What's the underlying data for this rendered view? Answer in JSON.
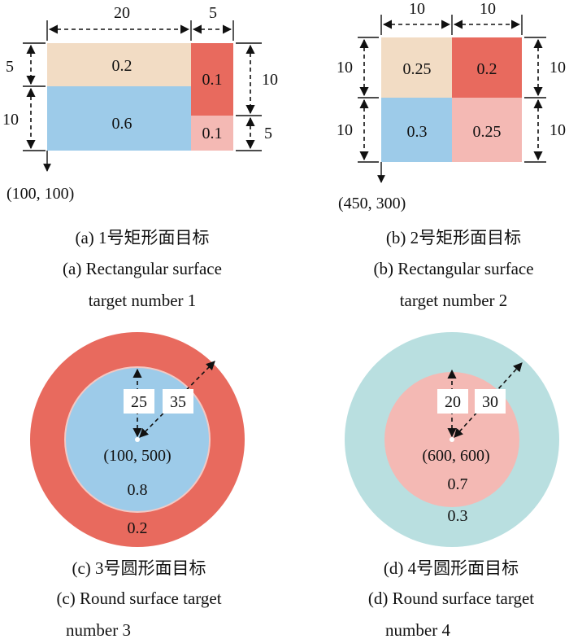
{
  "colors": {
    "tan": "#f2dcc4",
    "red": "#e86a5e",
    "pink": "#f4b9b4",
    "blue": "#9dcbe9",
    "teal": "#b9dfe0"
  },
  "panel_a": {
    "dims": {
      "top_left": "20",
      "top_right": "5",
      "left_top": "5",
      "left_bottom": "10",
      "right_top": "10",
      "right_bottom": "5"
    },
    "cells": {
      "tan": "0.2",
      "blue": "0.6",
      "red": "0.1",
      "pink": "0.1"
    },
    "origin": "(100, 100)",
    "caption_cn": "(a) 1号矩形面目标",
    "caption_en_1": "(a) Rectangular surface",
    "caption_en_2": "target number 1"
  },
  "panel_b": {
    "dims": {
      "top_left": "10",
      "top_right": "10",
      "left_top": "10",
      "left_bottom": "10",
      "right_top": "10",
      "right_bottom": "10"
    },
    "cells": {
      "tan": "0.25",
      "red": "0.2",
      "blue": "0.3",
      "pink": "0.25"
    },
    "origin": "(450, 300)",
    "caption_cn": "(b) 2号矩形面目标",
    "caption_en_1": "(b) Rectangular surface",
    "caption_en_2": "target number 2"
  },
  "panel_c": {
    "inner_radius": "25",
    "outer_radius": "35",
    "center": "(100, 500)",
    "inner_value": "0.8",
    "outer_value": "0.2",
    "caption_cn": "(c) 3号圆形面目标",
    "caption_en_1": "(c) Round surface target",
    "caption_en_2": "number 3"
  },
  "panel_d": {
    "inner_radius": "20",
    "outer_radius": "30",
    "center": "(600, 600)",
    "inner_value": "0.7",
    "outer_value": "0.3",
    "caption_cn": "(d) 4号圆形面目标",
    "caption_en_1": "(d) Round surface target",
    "caption_en_2": "number 4"
  }
}
